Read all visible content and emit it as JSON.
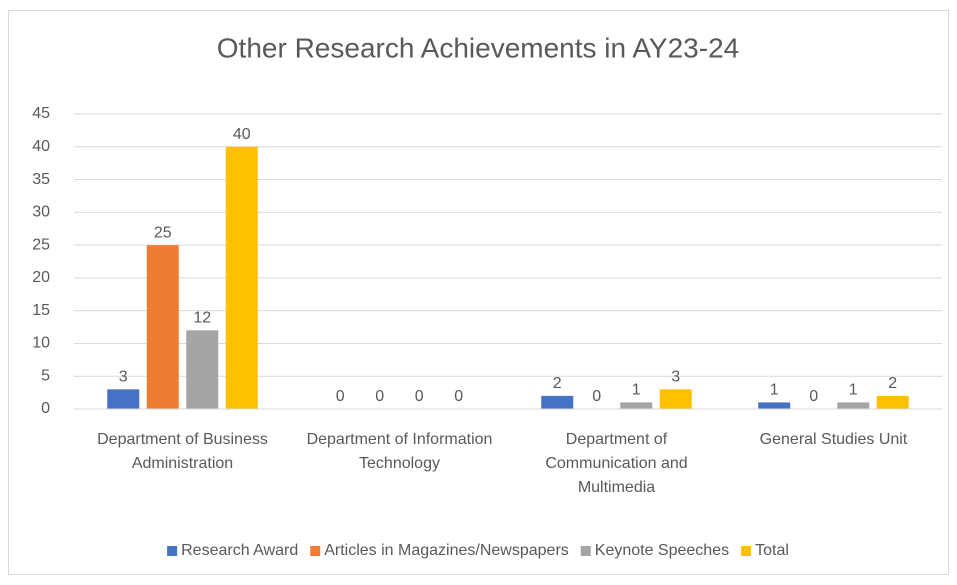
{
  "chart_data": {
    "type": "bar",
    "title": "Other Research Achievements in AY23-24",
    "categories": [
      "Department of Business Administration",
      "Department of Information Technology",
      "Department of Communication and Multimedia",
      "General Studies Unit"
    ],
    "series": [
      {
        "name": "Research Award",
        "color": "#4472c4",
        "values": [
          3,
          0,
          2,
          1
        ]
      },
      {
        "name": "Articles in Magazines/Newspapers",
        "color": "#ed7d31",
        "values": [
          25,
          0,
          0,
          0
        ]
      },
      {
        "name": "Keynote Speeches",
        "color": "#a5a5a5",
        "values": [
          12,
          0,
          1,
          1
        ]
      },
      {
        "name": "Total",
        "color": "#ffc000",
        "values": [
          40,
          0,
          3,
          2
        ]
      }
    ],
    "ylim": [
      0,
      45
    ],
    "yticks": [
      0,
      5,
      10,
      15,
      20,
      25,
      30,
      35,
      40,
      45
    ],
    "grid": true,
    "legend": "bottom"
  }
}
